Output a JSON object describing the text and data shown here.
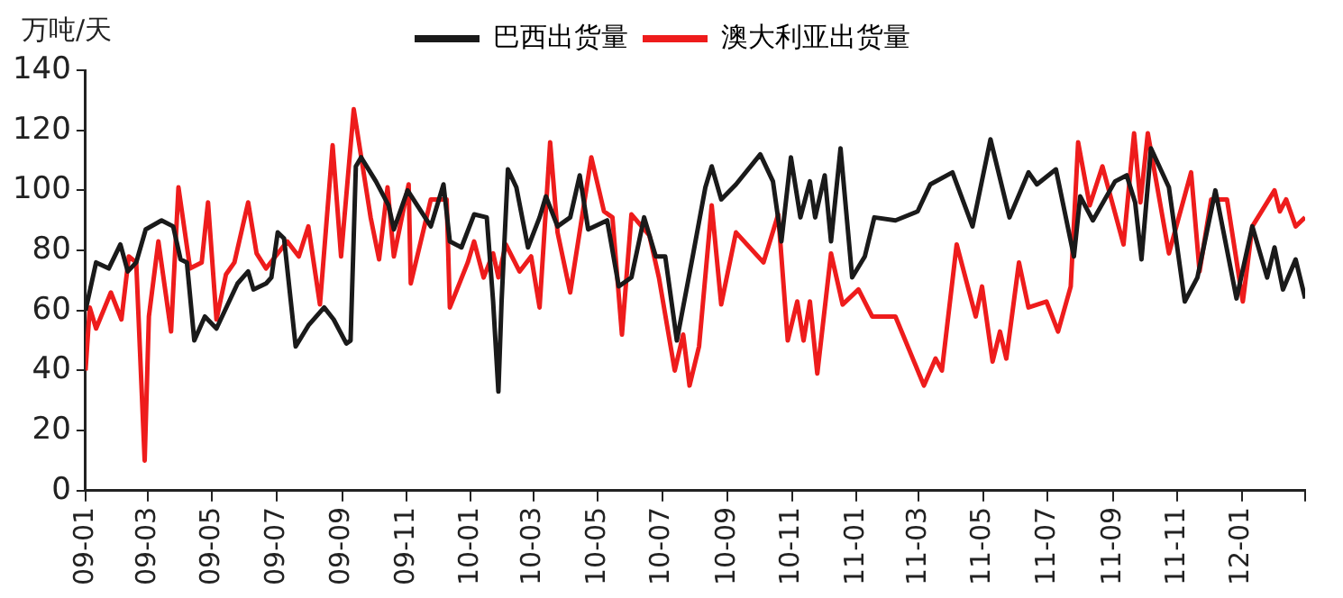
{
  "chart_data": {
    "type": "line",
    "ylabel": "万吨/天",
    "legend": "top",
    "grid": false,
    "marker": "none",
    "line_style": "solid",
    "xlim": [
      "2009-01-01",
      "2012-03-01"
    ],
    "xticks": [
      {
        "value": "2009-01-01",
        "label": "09-01"
      },
      {
        "value": "2009-03-01",
        "label": "09-03"
      },
      {
        "value": "2009-05-01",
        "label": "09-05"
      },
      {
        "value": "2009-07-01",
        "label": "09-07"
      },
      {
        "value": "2009-09-01",
        "label": "09-09"
      },
      {
        "value": "2009-11-01",
        "label": "09-11"
      },
      {
        "value": "2010-01-01",
        "label": "10-01"
      },
      {
        "value": "2010-03-01",
        "label": "10-03"
      },
      {
        "value": "2010-05-01",
        "label": "10-05"
      },
      {
        "value": "2010-07-01",
        "label": "10-07"
      },
      {
        "value": "2010-09-01",
        "label": "10-09"
      },
      {
        "value": "2010-11-01",
        "label": "10-11"
      },
      {
        "value": "2011-01-01",
        "label": "11-01"
      },
      {
        "value": "2011-03-01",
        "label": "11-03"
      },
      {
        "value": "2011-05-01",
        "label": "11-05"
      },
      {
        "value": "2011-07-01",
        "label": "11-07"
      },
      {
        "value": "2011-09-01",
        "label": "11-09"
      },
      {
        "value": "2011-11-01",
        "label": "11-11"
      },
      {
        "value": "2012-01-01",
        "label": "12-01"
      },
      {
        "value": "2012-03-01",
        "label": null
      }
    ],
    "ylim": [
      0,
      140
    ],
    "yticks": [
      0,
      20,
      40,
      60,
      80,
      100,
      120,
      140
    ],
    "series": [
      {
        "name": "巴西出货量",
        "color": "#1a1a1a",
        "x": [
          "2009-01-01",
          "2009-01-11",
          "2009-01-23",
          "2009-02-03",
          "2009-02-10",
          "2009-02-18",
          "2009-02-27",
          "2009-03-14",
          "2009-03-25",
          "2009-04-01",
          "2009-04-07",
          "2009-04-14",
          "2009-04-24",
          "2009-05-05",
          "2009-05-17",
          "2009-05-25",
          "2009-06-04",
          "2009-06-09",
          "2009-06-21",
          "2009-06-26",
          "2009-07-02",
          "2009-07-08",
          "2009-07-19",
          "2009-07-31",
          "2009-08-15",
          "2009-08-24",
          "2009-09-05",
          "2009-09-09",
          "2009-09-14",
          "2009-09-19",
          "2009-10-03",
          "2009-10-15",
          "2009-10-20",
          "2009-11-02",
          "2009-11-24",
          "2009-12-06",
          "2009-12-12",
          "2009-12-23",
          "2010-01-04",
          "2010-01-16",
          "2010-01-22",
          "2010-01-27",
          "2010-01-30",
          "2010-02-05",
          "2010-02-13",
          "2010-02-24",
          "2010-03-07",
          "2010-03-13",
          "2010-03-24",
          "2010-04-05",
          "2010-04-14",
          "2010-04-22",
          "2010-05-10",
          "2010-05-21",
          "2010-06-02",
          "2010-06-14",
          "2010-06-25",
          "2010-07-04",
          "2010-07-15",
          "2010-07-30",
          "2010-08-11",
          "2010-08-17",
          "2010-08-26",
          "2010-09-09",
          "2010-10-02",
          "2010-10-14",
          "2010-10-22",
          "2010-10-31",
          "2010-11-09",
          "2010-11-18",
          "2010-11-23",
          "2010-12-02",
          "2010-12-08",
          "2010-12-17",
          "2010-12-28",
          "2011-01-09",
          "2011-01-18",
          "2011-02-07",
          "2011-02-28",
          "2011-03-12",
          "2011-04-02",
          "2011-04-21",
          "2011-05-08",
          "2011-05-26",
          "2011-06-13",
          "2011-06-21",
          "2011-07-09",
          "2011-07-26",
          "2011-08-01",
          "2011-08-13",
          "2011-09-03",
          "2011-09-14",
          "2011-09-22",
          "2011-09-28",
          "2011-10-07",
          "2011-10-24",
          "2011-11-08",
          "2011-11-20",
          "2011-12-07",
          "2011-12-27",
          "2012-01-11",
          "2012-01-25",
          "2012-02-01",
          "2012-02-09",
          "2012-02-21",
          "2012-03-01"
        ],
        "values": [
          60,
          76,
          74,
          82,
          73,
          76,
          87,
          90,
          88,
          77,
          76,
          50,
          58,
          54,
          63,
          69,
          73,
          67,
          69,
          71,
          86,
          84,
          48,
          55,
          61,
          57,
          49,
          50,
          108,
          111,
          103,
          95,
          87,
          100,
          88,
          102,
          83,
          81,
          92,
          91,
          63,
          33,
          63,
          107,
          101,
          81,
          91,
          98,
          88,
          91,
          105,
          87,
          90,
          68,
          71,
          91,
          78,
          78,
          50,
          78,
          101,
          108,
          97,
          102,
          112,
          103,
          83,
          111,
          91,
          103,
          91,
          105,
          83,
          114,
          71,
          78,
          91,
          90,
          93,
          102,
          106,
          88,
          117,
          91,
          106,
          102,
          107,
          78,
          98,
          90,
          103,
          105,
          96,
          77,
          114,
          101,
          63,
          71,
          100,
          64,
          88,
          71,
          81,
          67,
          77,
          64
        ]
      },
      {
        "name": "澳大利亚出货量",
        "color": "#ee1c1c",
        "x": [
          "2009-01-01",
          "2009-01-05",
          "2009-01-11",
          "2009-01-25",
          "2009-02-04",
          "2009-02-11",
          "2009-02-18",
          "2009-02-26",
          "2009-03-02",
          "2009-03-11",
          "2009-03-23",
          "2009-03-30",
          "2009-04-10",
          "2009-04-21",
          "2009-04-27",
          "2009-05-05",
          "2009-05-14",
          "2009-05-22",
          "2009-06-04",
          "2009-06-12",
          "2009-06-21",
          "2009-07-11",
          "2009-07-22",
          "2009-07-31",
          "2009-08-11",
          "2009-08-23",
          "2009-08-31",
          "2009-09-12",
          "2009-09-28",
          "2009-10-06",
          "2009-10-14",
          "2009-10-20",
          "2009-11-03",
          "2009-11-05",
          "2009-11-24",
          "2009-12-09",
          "2009-12-12",
          "2009-12-29",
          "2010-01-04",
          "2010-01-13",
          "2010-01-22",
          "2010-01-27",
          "2010-02-03",
          "2010-02-16",
          "2010-02-27",
          "2010-03-07",
          "2010-03-17",
          "2010-03-24",
          "2010-04-05",
          "2010-04-25",
          "2010-05-07",
          "2010-05-15",
          "2010-05-24",
          "2010-06-02",
          "2010-06-19",
          "2010-06-28",
          "2010-07-13",
          "2010-07-21",
          "2010-07-27",
          "2010-08-05",
          "2010-08-17",
          "2010-08-26",
          "2010-09-09",
          "2010-10-05",
          "2010-10-19",
          "2010-10-28",
          "2010-11-06",
          "2010-11-12",
          "2010-11-18",
          "2010-11-25",
          "2010-12-08",
          "2010-12-19",
          "2011-01-03",
          "2011-01-16",
          "2011-02-07",
          "2011-03-06",
          "2011-03-17",
          "2011-03-23",
          "2011-04-06",
          "2011-04-24",
          "2011-04-30",
          "2011-05-10",
          "2011-05-17",
          "2011-05-23",
          "2011-06-04",
          "2011-06-13",
          "2011-06-30",
          "2011-07-11",
          "2011-07-23",
          "2011-07-30",
          "2011-08-10",
          "2011-08-22",
          "2011-09-11",
          "2011-09-21",
          "2011-09-27",
          "2011-10-04",
          "2011-10-24",
          "2011-11-14",
          "2011-11-22",
          "2011-12-03",
          "2011-12-18",
          "2012-01-02",
          "2012-01-11",
          "2012-02-01",
          "2012-02-06",
          "2012-02-12",
          "2012-02-21",
          "2012-03-01"
        ],
        "values": [
          40,
          61,
          54,
          66,
          57,
          78,
          76,
          10,
          58,
          83,
          53,
          101,
          74,
          76,
          96,
          57,
          72,
          76,
          96,
          79,
          74,
          83,
          78,
          88,
          62,
          115,
          78,
          127,
          91,
          77,
          101,
          78,
          102,
          69,
          97,
          97,
          61,
          76,
          83,
          71,
          79,
          71,
          82,
          73,
          78,
          61,
          116,
          86,
          66,
          111,
          93,
          91,
          52,
          92,
          85,
          71,
          40,
          52,
          35,
          48,
          95,
          62,
          86,
          76,
          92,
          50,
          63,
          50,
          63,
          39,
          79,
          62,
          67,
          58,
          58,
          35,
          44,
          40,
          82,
          58,
          68,
          43,
          53,
          44,
          76,
          61,
          63,
          53,
          68,
          116,
          95,
          108,
          82,
          119,
          96,
          119,
          79,
          106,
          73,
          97,
          97,
          63,
          88,
          100,
          93,
          97,
          88,
          91
        ]
      }
    ]
  }
}
